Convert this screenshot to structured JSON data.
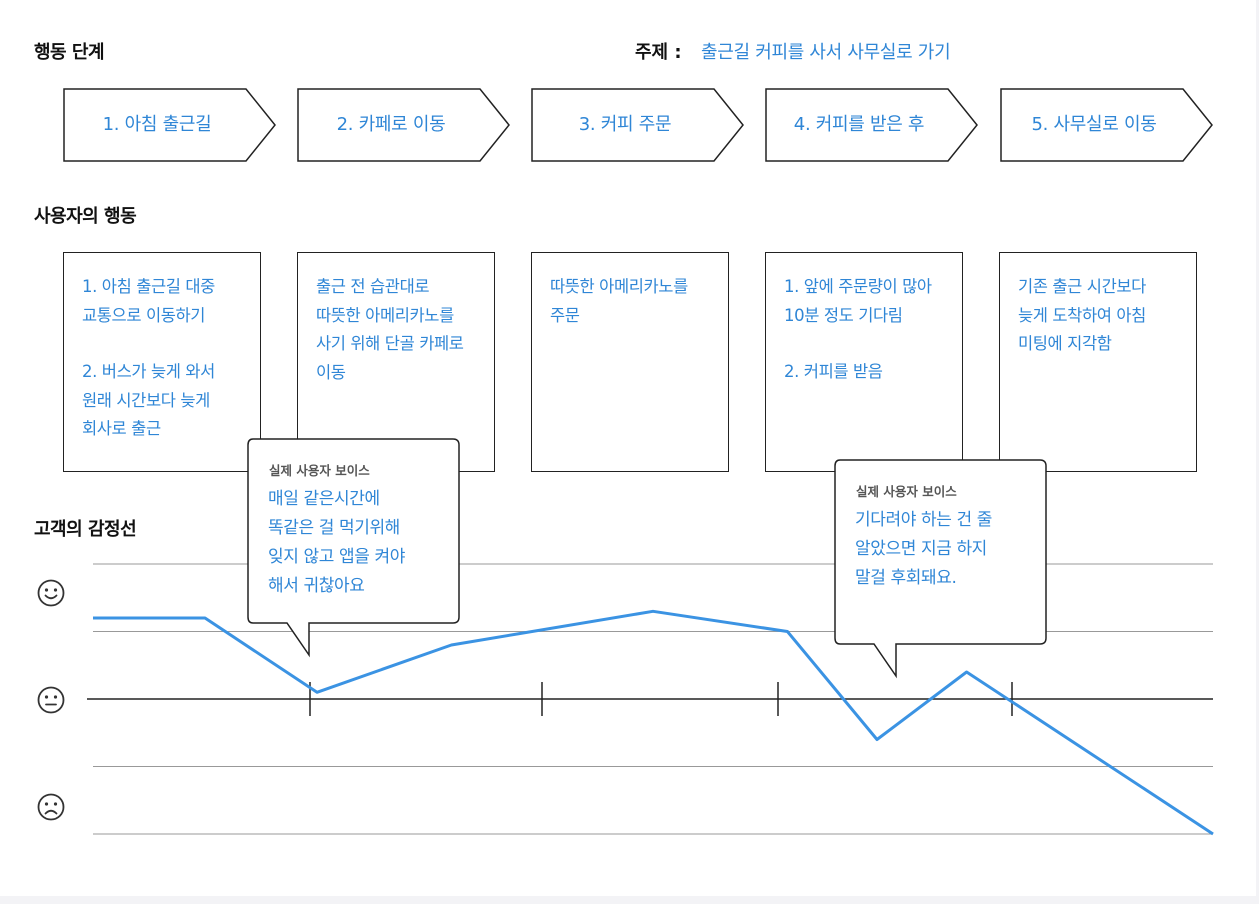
{
  "headings": {
    "stages": "행동 단계",
    "actions": "사용자의 행동",
    "emotion": "고객의 감정선"
  },
  "topic": {
    "label": "주제 :",
    "value": "출근길 커피를 사서 사무실로 가기"
  },
  "stages": [
    {
      "label": "1. 아침 출근길"
    },
    {
      "label": "2. 카페로 이동"
    },
    {
      "label": "3. 커피 주문"
    },
    {
      "label": "4. 커피를 받은 후"
    },
    {
      "label": "5. 사무실로 이동"
    }
  ],
  "actions": [
    {
      "lines": [
        "1. 아침 출근길 대중",
        "교통으로 이동하기",
        "",
        "2. 버스가 늦게 와서",
        "원래 시간보다 늦게",
        "회사로 출근"
      ]
    },
    {
      "lines": [
        "출근 전 습관대로",
        "따뜻한 아메리카노를",
        "사기 위해 단골 카페로",
        "이동"
      ]
    },
    {
      "lines": [
        "따뜻한 아메리카노를",
        "주문"
      ]
    },
    {
      "lines": [
        "1. 앞에 주문량이 많아",
        "10분 정도 기다림",
        "",
        "2. 커피를 받음"
      ]
    },
    {
      "lines": [
        "기존 출근 시간보다",
        "늦게 도착하여 아침",
        "미팅에 지각함"
      ]
    }
  ],
  "faces": [
    {
      "icon": "smile-face-icon",
      "level": "positive"
    },
    {
      "icon": "neutral-face-icon",
      "level": "neutral"
    },
    {
      "icon": "sad-face-icon",
      "level": "negative"
    }
  ],
  "voices": [
    {
      "title": "실제 사용자 보이스",
      "lines": [
        "매일 같은시간에",
        "똑같은 걸 먹기위해",
        "잊지 않고 앱을 켜야",
        "해서 귀찮아요"
      ]
    },
    {
      "title": "실제 사용자 보이스",
      "lines": [
        "기다려야 하는 건 줄",
        "알았으면 지금 하지",
        "말걸 후회돼요."
      ]
    }
  ],
  "chart_data": {
    "type": "line",
    "y_levels": [
      "negative",
      "neutral",
      "positive"
    ],
    "ylim": [
      -2,
      2
    ],
    "x_range": [
      0,
      5
    ],
    "stage_boundaries": [
      1,
      2,
      3,
      4
    ],
    "grid": true,
    "line_color": "#3b93e3",
    "series": [
      {
        "points": [
          [
            0,
            1.2
          ],
          [
            0.5,
            1.2
          ],
          [
            1,
            0.1
          ],
          [
            1.6,
            0.8
          ],
          [
            2.5,
            1.3
          ],
          [
            3.1,
            1.0
          ],
          [
            3.5,
            -0.6
          ],
          [
            3.9,
            0.4
          ],
          [
            5,
            -2.0
          ]
        ]
      }
    ]
  },
  "colors": {
    "accent": "#2f86d6",
    "line": "#3b93e3",
    "border": "#222222",
    "grid": "#999999"
  }
}
